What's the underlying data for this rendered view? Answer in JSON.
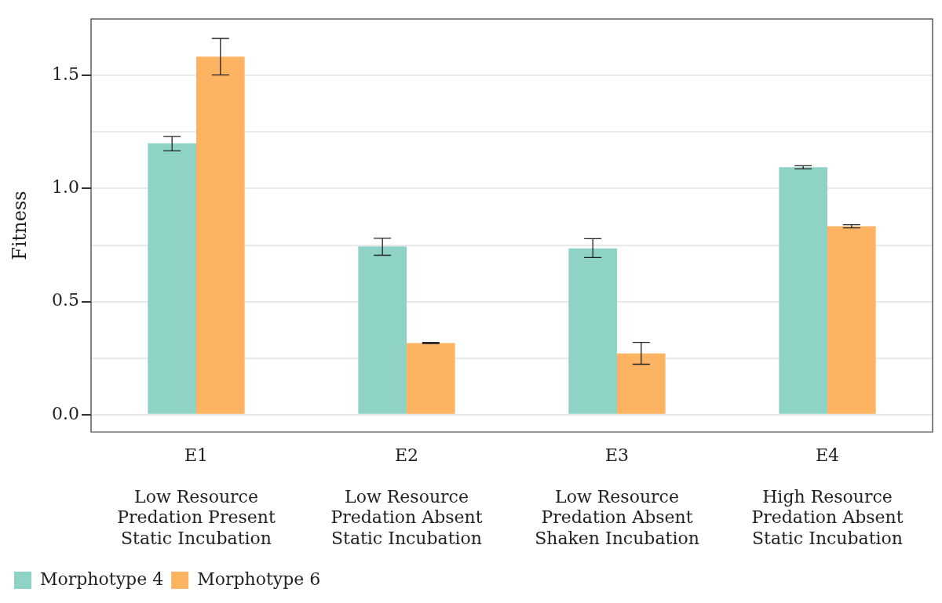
{
  "chart_data": {
    "type": "bar",
    "ylabel": "Fitness",
    "categories": [
      "E1\nLow Resource\nPredation Present\nStatic Incubation",
      "E2\nLow Resource\nPredation Absent\nStatic Incubation",
      "E3\nLow Resource\nPredation Absent\nShaken Incubation",
      "E4\nHigh Resource\nPredation Absent\nStatic Incubation"
    ],
    "series": [
      {
        "name": "Morphotype 4",
        "color": "#8fd3c7",
        "values": [
          1.2,
          0.744,
          0.735,
          1.094
        ],
        "errors": [
          [
            1.167,
            1.23
          ],
          [
            0.705,
            0.78
          ],
          [
            0.695,
            0.778
          ],
          [
            1.087,
            1.101
          ]
        ]
      },
      {
        "name": "Morphotype 6",
        "color": "#fdb462",
        "values": [
          1.583,
          0.317,
          0.271,
          0.833
        ],
        "errors": [
          [
            1.502,
            1.664
          ],
          [
            0.314,
            0.32
          ],
          [
            0.223,
            0.32
          ],
          [
            0.826,
            0.84
          ]
        ]
      }
    ],
    "ylim": [
      -0.077,
      1.75
    ],
    "yticks": [
      {
        "value": 0,
        "label": "0.0"
      },
      {
        "value": 0.25,
        "label": null
      },
      {
        "value": 0.5,
        "label": "0.5"
      },
      {
        "value": 0.75,
        "label": null
      },
      {
        "value": 1,
        "label": "1.0"
      },
      {
        "value": 1.25,
        "label": null
      },
      {
        "value": 1.5,
        "label": "1.5"
      }
    ],
    "grid": "y",
    "legend": "bottom left"
  }
}
